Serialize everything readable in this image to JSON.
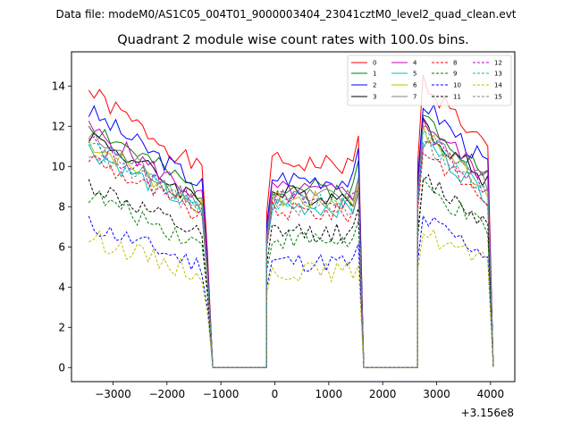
{
  "figure": {
    "suptitle": "Data file: modeM0/AS1C05_004T01_9000003404_23041cztM0_level2_quad_clean.evt",
    "title": "Quadrant 2 module wise count rates with 100.0s bins."
  },
  "chart_data": {
    "type": "line",
    "title": "Quadrant 2 module wise count rates with 100.0s bins.",
    "xlabel": "",
    "ylabel": "",
    "x_offset_label": "+3.156e8",
    "xlim": [
      -3770,
      4450
    ],
    "ylim": [
      -0.7,
      15.7
    ],
    "x_ticks": [
      -3000,
      -2000,
      -1000,
      0,
      1000,
      2000,
      3000,
      4000
    ],
    "x_tick_labels": [
      "−3000",
      "−2000",
      "−1000",
      "0",
      "1000",
      "2000",
      "3000",
      "4000"
    ],
    "y_ticks": [
      0,
      2,
      4,
      6,
      8,
      10,
      12,
      14
    ],
    "y_tick_labels": [
      "0",
      "2",
      "4",
      "6",
      "8",
      "10",
      "12",
      "14"
    ],
    "grid": false,
    "legend_position": "top-right",
    "segments": [
      {
        "start": -3450,
        "end": -1250,
        "step": 100
      },
      {
        "start": -150,
        "end": 1550,
        "step": 100
      },
      {
        "start": 2650,
        "end": 4050,
        "step": 100
      }
    ],
    "zero_ranges": [
      [
        -1150,
        -150
      ],
      [
        1650,
        2650
      ]
    ],
    "series": [
      {
        "name": "0",
        "color": "#ff0000",
        "dashed": false,
        "level": 11.0,
        "seed": 1
      },
      {
        "name": "1",
        "color": "#008000",
        "dashed": false,
        "level": 9.7,
        "seed": 2
      },
      {
        "name": "2",
        "color": "#0000ff",
        "dashed": false,
        "level": 10.2,
        "seed": 3
      },
      {
        "name": "3",
        "color": "#000000",
        "dashed": false,
        "level": 9.3,
        "seed": 4
      },
      {
        "name": "4",
        "color": "#bf00bf",
        "dashed": false,
        "level": 9.5,
        "seed": 5
      },
      {
        "name": "5",
        "color": "#00bfbf",
        "dashed": false,
        "level": 8.7,
        "seed": 6
      },
      {
        "name": "6",
        "color": "#bfbf00",
        "dashed": false,
        "level": 9.0,
        "seed": 7
      },
      {
        "name": "7",
        "color": "#808080",
        "dashed": false,
        "level": 9.2,
        "seed": 8
      },
      {
        "name": "8",
        "color": "#ff0000",
        "dashed": true,
        "level": 8.4,
        "seed": 9
      },
      {
        "name": "9",
        "color": "#008000",
        "dashed": true,
        "level": 6.9,
        "seed": 10
      },
      {
        "name": "10",
        "color": "#0000ff",
        "dashed": true,
        "level": 5.7,
        "seed": 11
      },
      {
        "name": "11",
        "color": "#000000",
        "dashed": true,
        "level": 7.3,
        "seed": 12
      },
      {
        "name": "12",
        "color": "#bf00bf",
        "dashed": true,
        "level": 9.0,
        "seed": 13
      },
      {
        "name": "13",
        "color": "#00bfbf",
        "dashed": true,
        "level": 8.9,
        "seed": 14
      },
      {
        "name": "14",
        "color": "#bfbf00",
        "dashed": true,
        "level": 5.2,
        "seed": 15
      },
      {
        "name": "15",
        "color": "#808080",
        "dashed": true,
        "level": 8.7,
        "seed": 16
      }
    ]
  }
}
